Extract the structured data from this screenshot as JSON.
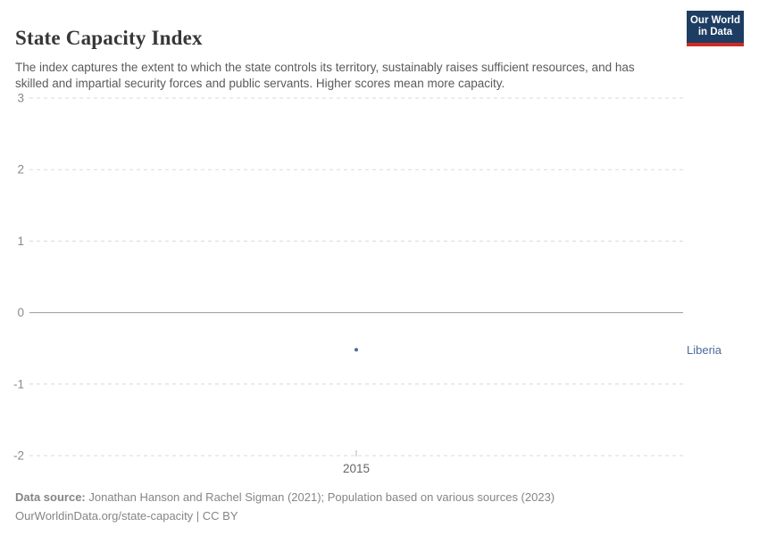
{
  "header": {
    "title": "State Capacity Index",
    "subtitle": "The index captures the extent to which the state controls its territory, sustainably raises sufficient resources, and has skilled and impartial security forces and public servants. Higher scores mean more capacity.",
    "logo": {
      "line1": "Our World",
      "line2": "in Data"
    }
  },
  "chart_data": {
    "type": "scatter",
    "title": "State Capacity Index",
    "xlabel": "",
    "ylabel": "",
    "ylim": [
      -2,
      3
    ],
    "yticks": [
      3,
      2,
      1,
      0,
      -1,
      -2
    ],
    "xticks": [
      "2015"
    ],
    "grid": true,
    "zero_line": true,
    "legend_position": "right-entity-label",
    "series": [
      {
        "name": "Liberia",
        "color": "#4c6a9c",
        "points": [
          {
            "x": 2015,
            "y": -0.52
          }
        ]
      }
    ]
  },
  "footer": {
    "datasource_label": "Data source:",
    "datasource_text": " Jonathan Hanson and Rachel Sigman (2021); Population based on various sources (2023)",
    "note_line": "OurWorldinData.org/state-capacity | CC BY"
  },
  "colors": {
    "accent": "#4c6a9c",
    "grid": "#d9d9d9",
    "zero_axis": "#9a9a9a",
    "y_tick_text": "#898989",
    "x_tick_text": "#666666",
    "logo_bg": "#1d3d63",
    "logo_stripe": "#d12a23"
  }
}
